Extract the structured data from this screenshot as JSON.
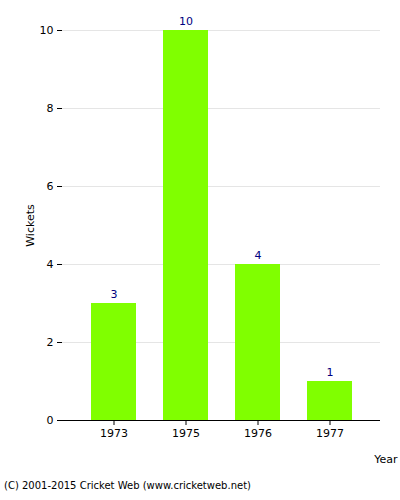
{
  "chart_data": {
    "type": "bar",
    "categories": [
      "1973",
      "1975",
      "1976",
      "1977"
    ],
    "values": [
      3,
      10,
      4,
      1
    ],
    "color": "#80ff00",
    "x_label": "Year",
    "y_label": "Wickets",
    "ylim": [
      0,
      10
    ],
    "yticks": [
      0,
      2,
      4,
      6,
      8,
      10
    ],
    "grid": true,
    "data_labels": true,
    "caption": "(C) 2001-2015 Cricket Web (www.cricketweb.net)"
  }
}
